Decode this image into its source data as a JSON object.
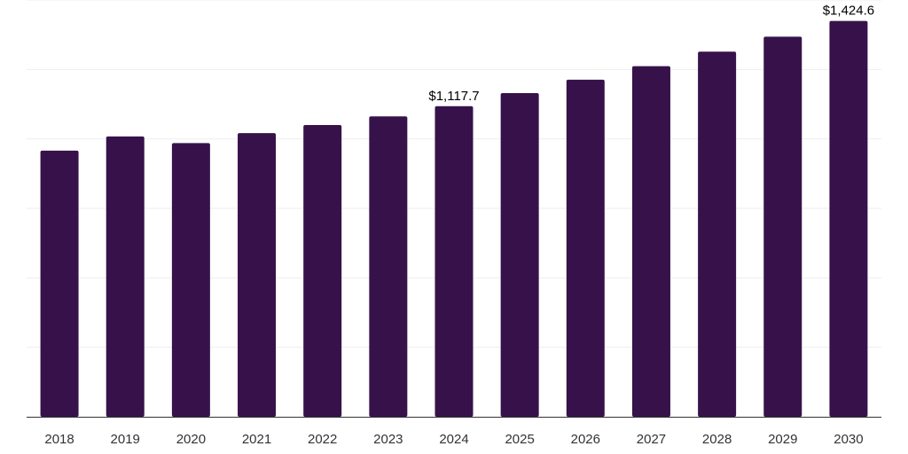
{
  "chart_data": {
    "type": "bar",
    "categories": [
      "2018",
      "2019",
      "2020",
      "2021",
      "2022",
      "2023",
      "2024",
      "2025",
      "2026",
      "2027",
      "2028",
      "2029",
      "2030"
    ],
    "values": [
      958,
      1009,
      985,
      1021,
      1050,
      1081,
      1117.7,
      1165,
      1213,
      1262,
      1314,
      1368,
      1424.6
    ],
    "data_labels": [
      {
        "category": "2024",
        "text": "$1,117.7"
      },
      {
        "category": "2030",
        "text": "$1,424.6"
      }
    ],
    "ylim": [
      0,
      1500
    ],
    "y_gridlines": [
      0,
      250,
      500,
      750,
      1000,
      1250,
      1500
    ],
    "grid": true,
    "legend": "none",
    "colors": {
      "bar": "#37124a",
      "gridline": "#eeeeee",
      "axis": "#333333"
    }
  }
}
